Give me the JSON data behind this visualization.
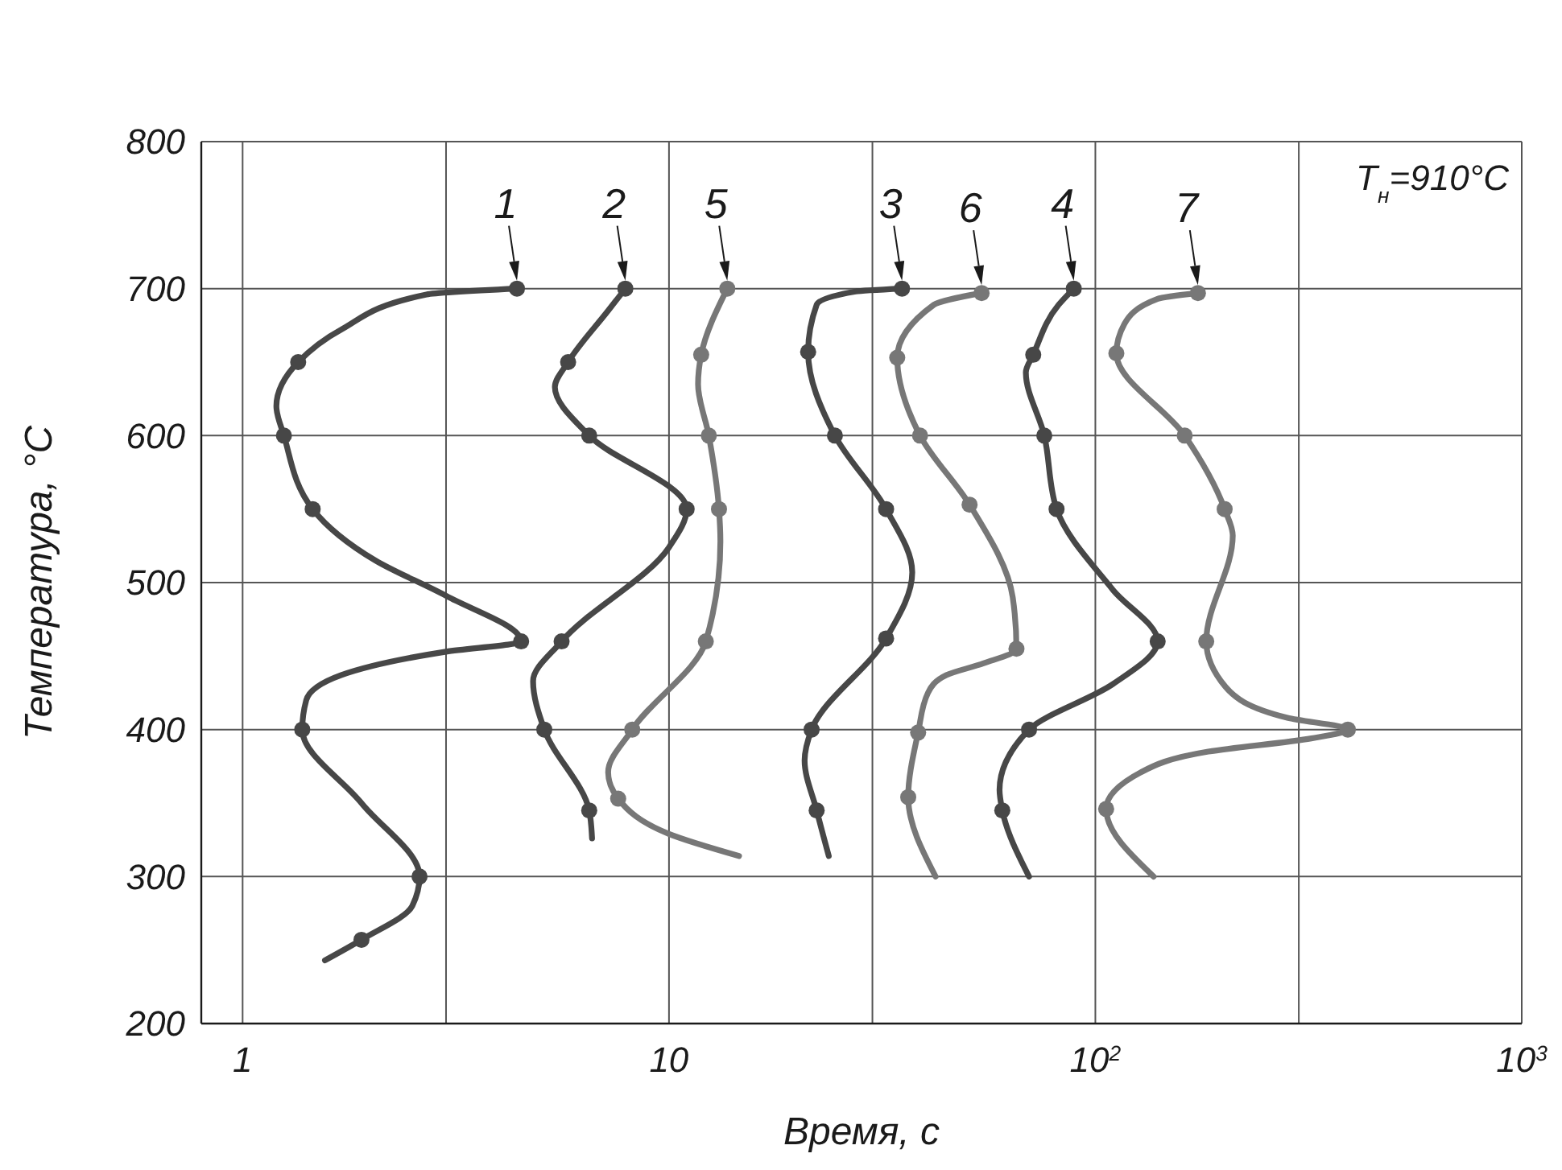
{
  "chart_data": {
    "type": "line",
    "xlabel": "Время, с",
    "ylabel": "Температура, °C",
    "annotations": [
      "T$_{н}$=910°C"
    ],
    "log": "x",
    "grid": true,
    "line_style": "solid",
    "xlim": [
      0.8,
      1000
    ],
    "xticks": [
      1,
      {
        "value": 3,
        "label": null
      },
      10,
      {
        "value": 30,
        "label": null
      },
      {
        "value": 100,
        "label": "10$^{2}$"
      },
      {
        "value": 300,
        "label": null
      },
      {
        "value": 1000,
        "label": "10$^{3}$"
      }
    ],
    "ylim": [
      200,
      800
    ],
    "yticks": [
      200,
      300,
      400,
      500,
      600,
      700,
      800
    ],
    "series": [
      {
        "name": "1",
        "color": "#474747",
        "marker": "none",
        "x": [
          4.4,
          2.7,
          1.7,
          1.35,
          1.2,
          1.25,
          1.46,
          2.05,
          3.0,
          4.5,
          3.0,
          1.7,
          1.41,
          1.38,
          1.9,
          2.6,
          2.5,
          1.9,
          1.56
        ],
        "values": [
          700,
          696,
          672,
          650,
          620,
          600,
          550,
          515,
          491,
          460,
          453,
          437,
          420,
          400,
          350,
          300,
          280,
          257,
          243
        ]
      },
      {
        "type": "scatter",
        "color": "#474747",
        "marker": "circle",
        "x": [
          4.4,
          1.35,
          1.25,
          1.46,
          4.5,
          1.38,
          2.6,
          1.9
        ],
        "values": [
          700,
          650,
          600,
          550,
          460,
          400,
          300,
          257
        ]
      },
      {
        "name": "2",
        "color": "#474747",
        "marker": "none",
        "x": [
          7.9,
          7.2,
          5.8,
          5.4,
          6.5,
          11,
          10,
          5.6,
          4.8,
          5.1,
          6.5,
          6.6
        ],
        "values": [
          700,
          685,
          650,
          633,
          600,
          550,
          524,
          460,
          433,
          400,
          345,
          326
        ]
      },
      {
        "type": "scatter",
        "color": "#474747",
        "marker": "circle",
        "x": [
          7.9,
          5.8,
          6.5,
          11,
          5.6,
          5.1,
          6.5
        ],
        "values": [
          700,
          650,
          600,
          550,
          460,
          400,
          345
        ]
      },
      {
        "name": "5",
        "color": "#777777",
        "marker": "none",
        "x": [
          13.7,
          11.9,
          11.7,
          12.4,
          13.1,
          13.2,
          12.2,
          8.2,
          7.2,
          7.6,
          10,
          14.6
        ],
        "values": [
          700,
          655,
          635,
          600,
          550,
          528,
          460,
          400,
          371,
          353,
          329,
          314
        ]
      },
      {
        "type": "scatter",
        "color": "#777777",
        "marker": "circle",
        "x": [
          13.7,
          11.9,
          12.4,
          13.1,
          12.2,
          8.2,
          7.6
        ],
        "values": [
          700,
          655,
          600,
          550,
          460,
          400,
          353
        ]
      },
      {
        "name": "3",
        "color": "#474747",
        "marker": "none",
        "x": [
          35.2,
          27.4,
          22.2,
          21.2,
          24.5,
          32.3,
          37.2,
          32.3,
          21.6,
          20.8,
          22.2,
          23.7
        ],
        "values": [
          700,
          698,
          689,
          657,
          600,
          550,
          507,
          462,
          400,
          379,
          345,
          314
        ]
      },
      {
        "type": "scatter",
        "color": "#474747",
        "marker": "circle",
        "x": [
          35.2,
          21.2,
          24.5,
          32.3,
          32.3,
          21.6,
          22.2
        ],
        "values": [
          700,
          657,
          600,
          550,
          462,
          400,
          345
        ]
      },
      {
        "name": "6",
        "color": "#777777",
        "marker": "none",
        "x": [
          54.1,
          41.8,
          34.3,
          38.8,
          50.7,
          64,
          65.3,
          54.6,
          44.7,
          40.5,
          38.4,
          36.4,
          42.2
        ],
        "values": [
          697,
          689,
          653,
          600,
          553,
          490,
          455,
          445,
          437,
          425,
          398,
          354,
          300
        ]
      },
      {
        "type": "scatter",
        "color": "#777777",
        "marker": "circle",
        "x": [
          54.1,
          34.3,
          38.8,
          50.7,
          65.3,
          38.4,
          36.4
        ],
        "values": [
          697,
          653,
          600,
          553,
          455,
          398,
          354
        ]
      },
      {
        "name": "4",
        "color": "#474747",
        "marker": "none",
        "x": [
          89,
          82,
          71.5,
          68.7,
          75.9,
          81.1,
          110,
          140,
          110,
          69.9,
          59.6,
          60.5,
          69.9
        ],
        "values": [
          700,
          689,
          655,
          643,
          600,
          550,
          495,
          460,
          431,
          400,
          359,
          345,
          300
        ]
      },
      {
        "type": "scatter",
        "color": "#474747",
        "marker": "circle",
        "x": [
          89,
          71.5,
          75.9,
          81.1,
          140,
          69.9,
          60.5
        ],
        "values": [
          700,
          655,
          600,
          550,
          460,
          400,
          345
        ]
      },
      {
        "name": "7",
        "color": "#777777",
        "marker": "none",
        "x": [
          174,
          140,
          117,
          112,
          162,
          201,
          210,
          182,
          202,
          282,
          391,
          321,
          184,
          128,
          106,
          137
        ],
        "values": [
          697,
          693,
          676,
          656,
          600,
          550,
          532,
          460,
          429,
          408,
          400,
          394,
          385,
          371,
          346,
          300
        ]
      },
      {
        "type": "scatter",
        "color": "#777777",
        "marker": "circle",
        "x": [
          174,
          112,
          162,
          201,
          182,
          391,
          106
        ],
        "values": [
          697,
          656,
          600,
          550,
          460,
          400,
          346
        ]
      }
    ]
  }
}
